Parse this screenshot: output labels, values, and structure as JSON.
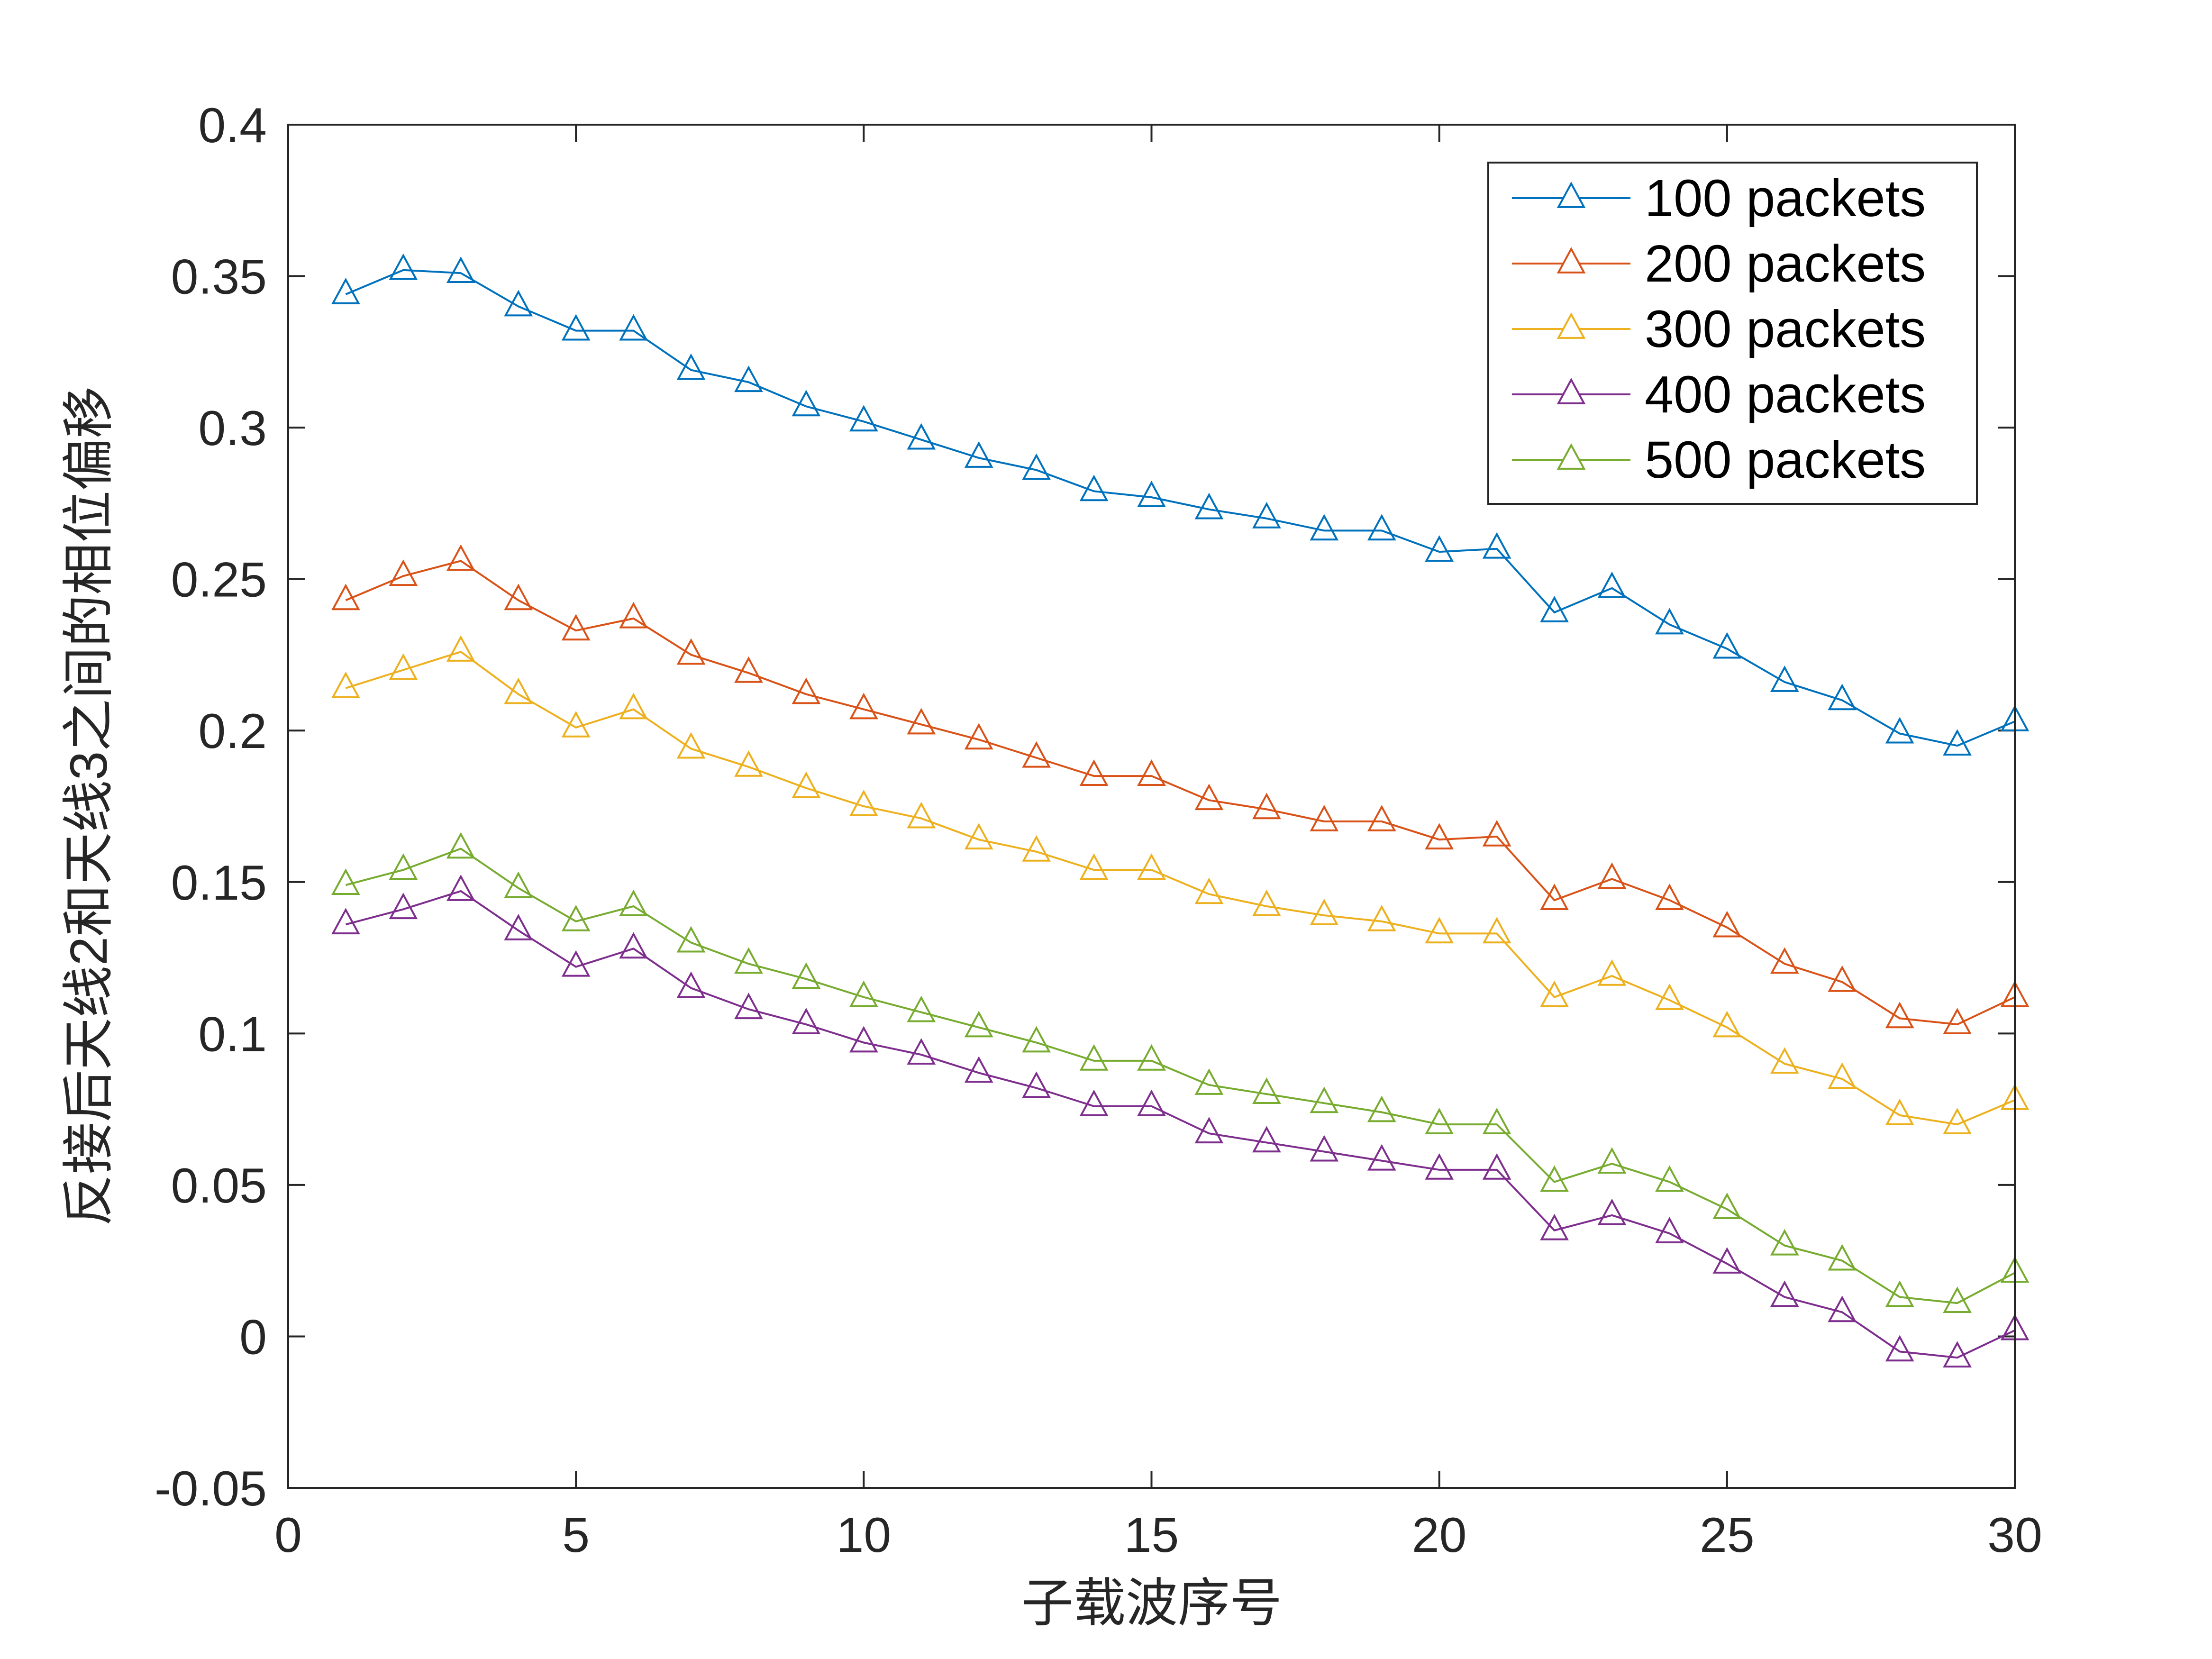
{
  "chart_data": {
    "type": "line",
    "title": "",
    "xlabel": "子载波序号",
    "ylabel": "反接后天线2和天线3之间的相位偏移",
    "xlim": [
      0,
      30
    ],
    "ylim": [
      -0.05,
      0.4
    ],
    "xticks": [
      0,
      5,
      10,
      15,
      20,
      25,
      30
    ],
    "xtick_labels": [
      "0",
      "5",
      "10",
      "15",
      "20",
      "25",
      "30"
    ],
    "yticks": [
      -0.05,
      0,
      0.05,
      0.1,
      0.15,
      0.2,
      0.25,
      0.3,
      0.35,
      0.4
    ],
    "ytick_labels": [
      "-0.05",
      "0",
      "0.05",
      "0.1",
      "0.15",
      "0.2",
      "0.25",
      "0.3",
      "0.35",
      "0.4"
    ],
    "grid": false,
    "legend_position": "top-right",
    "marker": "triangle",
    "x": [
      1,
      2,
      3,
      4,
      5,
      6,
      7,
      8,
      9,
      10,
      11,
      12,
      13,
      14,
      15,
      16,
      17,
      18,
      19,
      20,
      21,
      22,
      23,
      24,
      25,
      26,
      27,
      28,
      29,
      30
    ],
    "series": [
      {
        "name": "100 packets",
        "color": "#0072BD",
        "values": [
          0.344,
          0.352,
          0.351,
          0.34,
          0.332,
          0.332,
          0.319,
          0.315,
          0.307,
          0.302,
          0.296,
          0.29,
          0.286,
          0.279,
          0.277,
          0.273,
          0.27,
          0.266,
          0.266,
          0.259,
          0.26,
          0.239,
          0.247,
          0.235,
          0.227,
          0.216,
          0.21,
          0.199,
          0.195,
          0.203
        ]
      },
      {
        "name": "200 packets",
        "color": "#D95319",
        "values": [
          0.243,
          0.251,
          0.256,
          0.243,
          0.233,
          0.237,
          0.225,
          0.219,
          0.212,
          0.207,
          0.202,
          0.197,
          0.191,
          0.185,
          0.185,
          0.177,
          0.174,
          0.17,
          0.17,
          0.164,
          0.165,
          0.144,
          0.151,
          0.144,
          0.135,
          0.123,
          0.117,
          0.105,
          0.103,
          0.112
        ]
      },
      {
        "name": "300 packets",
        "color": "#EDB120",
        "values": [
          0.214,
          0.22,
          0.226,
          0.212,
          0.201,
          0.207,
          0.194,
          0.188,
          0.181,
          0.175,
          0.171,
          0.164,
          0.16,
          0.154,
          0.154,
          0.146,
          0.142,
          0.139,
          0.137,
          0.133,
          0.133,
          0.112,
          0.119,
          0.111,
          0.102,
          0.09,
          0.085,
          0.073,
          0.07,
          0.078
        ]
      },
      {
        "name": "400 packets",
        "color": "#7E2F8E",
        "values": [
          0.136,
          0.141,
          0.147,
          0.134,
          0.122,
          0.128,
          0.115,
          0.108,
          0.103,
          0.097,
          0.093,
          0.087,
          0.082,
          0.076,
          0.076,
          0.067,
          0.064,
          0.061,
          0.058,
          0.055,
          0.055,
          0.035,
          0.04,
          0.034,
          0.024,
          0.013,
          0.008,
          -0.005,
          -0.007,
          0.002
        ]
      },
      {
        "name": "500 packets",
        "color": "#77AC30",
        "values": [
          0.149,
          0.154,
          0.161,
          0.148,
          0.137,
          0.142,
          0.13,
          0.123,
          0.118,
          0.112,
          0.107,
          0.102,
          0.097,
          0.091,
          0.091,
          0.083,
          0.08,
          0.077,
          0.074,
          0.07,
          0.07,
          0.051,
          0.057,
          0.051,
          0.042,
          0.03,
          0.025,
          0.013,
          0.011,
          0.021
        ]
      }
    ]
  }
}
